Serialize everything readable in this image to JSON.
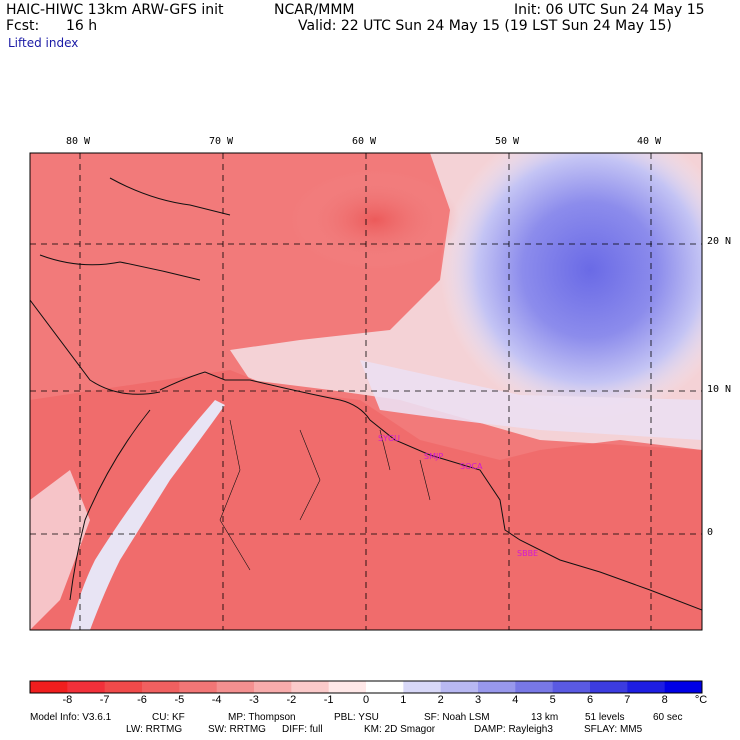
{
  "header": {
    "model_title": "HAIC-HIWC 13km ARW-GFS init",
    "org": "NCAR/MMM",
    "init": "Init: 06 UTC Sun 24 May 15",
    "fcst_label": "Fcst:",
    "fcst_value": "16 h",
    "valid": "Valid: 22 UTC Sun 24 May 15 (19 LST Sun 24 May 15)",
    "field": "Lifted index"
  },
  "map": {
    "lon_labels": [
      "80 W",
      "70 W",
      "60 W",
      "50 W",
      "40 W"
    ],
    "lat_labels": [
      "20 N",
      "10 N",
      "0"
    ],
    "stations": [
      "SYGU",
      "SMJP",
      "SOCA",
      "SBBE"
    ]
  },
  "colorbar": {
    "unit": "°C",
    "ticks": [
      "-8",
      "-7",
      "-6",
      "-5",
      "-4",
      "-3",
      "-2",
      "-1",
      "0",
      "1",
      "2",
      "3",
      "4",
      "5",
      "6",
      "7",
      "8"
    ],
    "colors": [
      "#f01e1e",
      "#f2303a",
      "#f04a4a",
      "#f06060",
      "#f27676",
      "#f49090",
      "#f8acac",
      "#fbcaca",
      "#ffe8e8",
      "#ffffff",
      "#d8d8f8",
      "#b8b8f2",
      "#9898ec",
      "#7878e6",
      "#5a5ae2",
      "#3c3ce0",
      "#1e1ee2",
      "#0000e6"
    ]
  },
  "footer": {
    "line1": [
      "Model Info: V3.6.1",
      "CU: KF",
      "MP: Thompson",
      "PBL: YSU",
      "SF: Noah LSM",
      "13 km",
      "51 levels",
      "60 sec"
    ],
    "line2": [
      "LW: RRTMG",
      "SW: RRTMG",
      "DIFF: full",
      "KM: 2D Smagor",
      "DAMP: Rayleigh3",
      "SFLAY: MM5"
    ]
  }
}
